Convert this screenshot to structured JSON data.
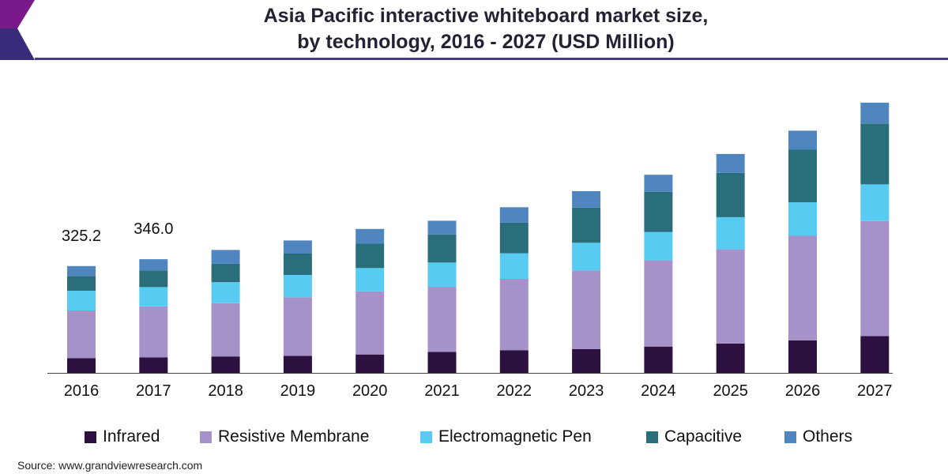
{
  "title_line1": "Asia Pacific interactive whiteboard market size,",
  "title_line2": "by technology, 2016 - 2027 (USD Million)",
  "source": "Source: www.grandviewresearch.com",
  "colors": {
    "Infrared": "#2b1040",
    "Resistive Membrane": "#a592c8",
    "Electromagnetic Pen": "#58cbf2",
    "Capacitive": "#2a6e7c",
    "Others": "#4f86c0",
    "accent": "#4a3a8c"
  },
  "chart_data": {
    "type": "bar",
    "stacked": true,
    "title": "Asia Pacific interactive whiteboard market size, by technology, 2016 - 2027 (USD Million)",
    "xlabel": "",
    "ylabel": "",
    "categories": [
      "2016",
      "2017",
      "2018",
      "2019",
      "2020",
      "2021",
      "2022",
      "2023",
      "2024",
      "2025",
      "2026",
      "2027"
    ],
    "series": [
      {
        "name": "Infrared",
        "values": [
          45,
          47,
          50,
          52,
          56,
          64,
          69,
          72,
          80,
          89,
          99,
          112
        ]
      },
      {
        "name": "Resistive Membrane",
        "values": [
          145,
          155,
          162,
          178,
          192,
          198,
          217,
          240,
          263,
          287,
          318,
          350
        ]
      },
      {
        "name": "Electromagnetic Pen",
        "values": [
          60,
          59,
          64,
          68,
          71,
          74,
          78,
          84,
          86,
          98,
          102,
          112
        ]
      },
      {
        "name": "Capacitive",
        "values": [
          45,
          51,
          56,
          65,
          74,
          85,
          93,
          107,
          122,
          135,
          160,
          185
        ]
      },
      {
        "name": "Others",
        "values": [
          30,
          34,
          42,
          40,
          45,
          42,
          47,
          50,
          52,
          57,
          58,
          63
        ]
      }
    ],
    "data_labels": [
      {
        "category": "2016",
        "text": "325.2"
      },
      {
        "category": "2017",
        "text": "346.0"
      }
    ],
    "ylim": [
      0,
      1000
    ],
    "grid": false,
    "legend": "bottom"
  }
}
